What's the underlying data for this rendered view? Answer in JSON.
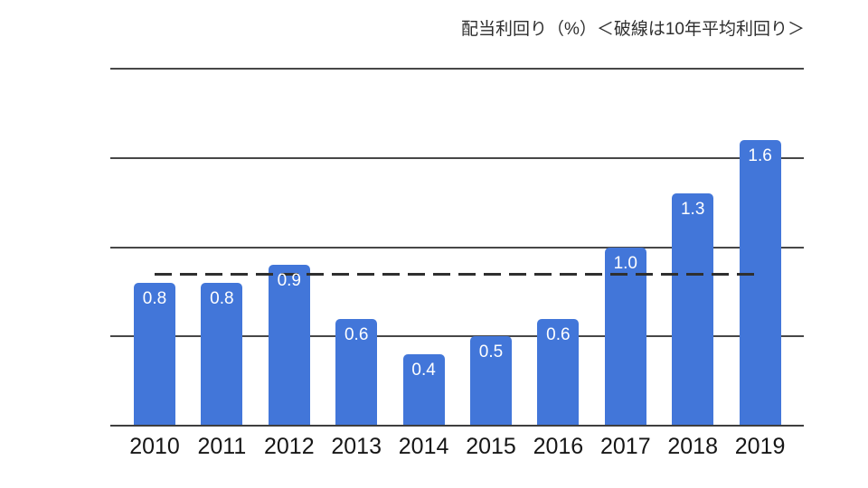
{
  "chart_data": {
    "type": "bar",
    "title": "配当利回り（%）＜破線は10年平均利回り＞",
    "categories": [
      "2010",
      "2011",
      "2012",
      "2013",
      "2014",
      "2015",
      "2016",
      "2017",
      "2018",
      "2019"
    ],
    "values": [
      0.8,
      0.8,
      0.9,
      0.6,
      0.4,
      0.5,
      0.6,
      1.0,
      1.3,
      1.6
    ],
    "bar_labels": [
      "0.8",
      "0.8",
      "0.9",
      "0.6",
      "0.4",
      "0.5",
      "0.6",
      "1.0",
      "1.3",
      "1.6"
    ],
    "average_line": {
      "value": 0.85,
      "style": "dashed",
      "meaning": "10年平均利回り"
    },
    "xlabel": "",
    "ylabel": "",
    "ylim": [
      0,
      2.0
    ],
    "gridline_values": [
      0.5,
      1.0,
      1.5,
      2.0
    ],
    "grid": "horizontal",
    "legend_position": "none",
    "colors": {
      "bar": "#4276d9",
      "bar_label_text": "#ffffff",
      "gridline": "#474747",
      "axis_line": "#3e3e3e",
      "dashed_line": "#2f2f2f",
      "axis_text": "#161616",
      "title_text": "#2e2e2e",
      "background": "#ffffff"
    }
  }
}
